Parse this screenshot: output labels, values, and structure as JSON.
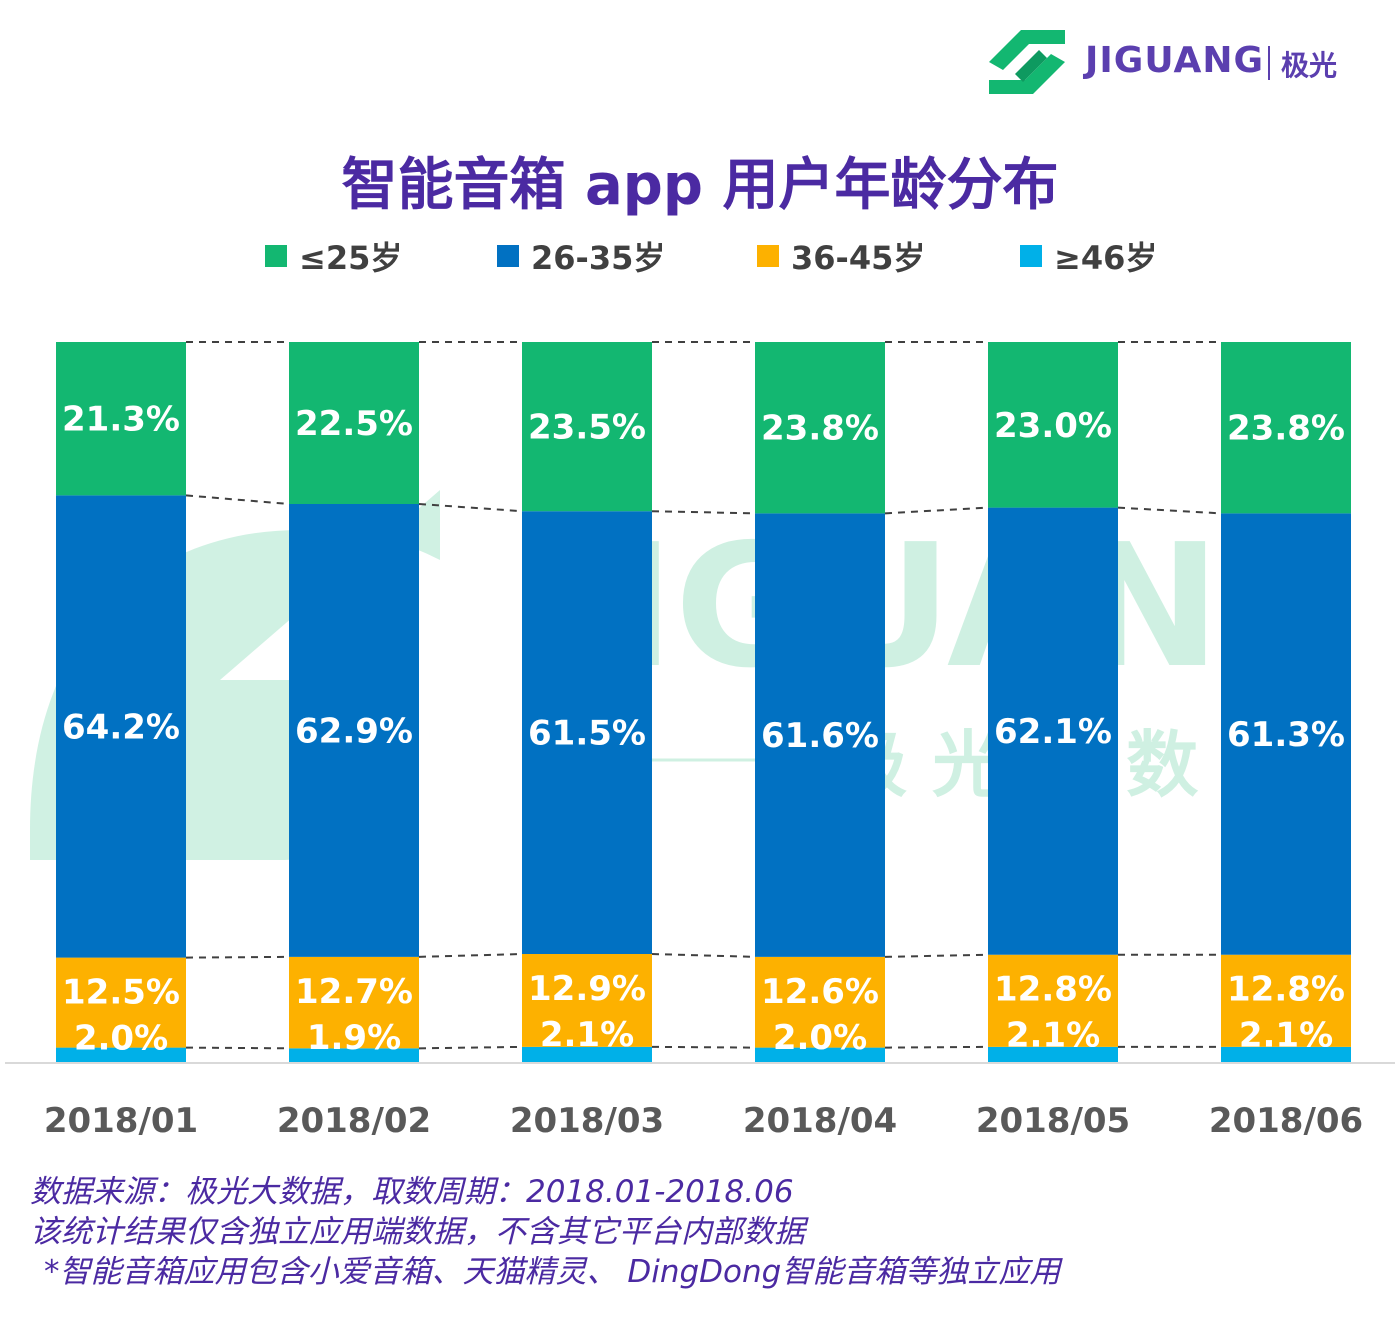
{
  "header": {
    "logo_text": "JIGUANG",
    "logo_cn": "极光"
  },
  "watermark": {
    "text": "JIGUANG",
    "cn": "极 光 大 数 据"
  },
  "title": "智能音箱 app 用户年龄分布",
  "legend": [
    {
      "label": "≤25岁",
      "color": "#13b771"
    },
    {
      "label": "26-35岁",
      "color": "#0171c2"
    },
    {
      "label": "36-45岁",
      "color": "#fdb100"
    },
    {
      "label": "≥46岁",
      "color": "#00b0e8"
    }
  ],
  "chart_data": {
    "type": "bar",
    "stacked": true,
    "normalized": true,
    "categories": [
      "2018/01",
      "2018/02",
      "2018/03",
      "2018/04",
      "2018/05",
      "2018/06"
    ],
    "series": [
      {
        "name": "≤25岁",
        "color": "#13b771",
        "values": [
          21.3,
          22.5,
          23.5,
          23.8,
          23.0,
          23.8
        ]
      },
      {
        "name": "26-35岁",
        "color": "#0171c2",
        "values": [
          64.2,
          62.9,
          61.5,
          61.6,
          62.1,
          61.3
        ]
      },
      {
        "name": "36-45岁",
        "color": "#fdb100",
        "values": [
          12.5,
          12.7,
          12.9,
          12.6,
          12.8,
          12.8
        ]
      },
      {
        "name": "≥46岁",
        "color": "#00b0e8",
        "values": [
          2.0,
          1.9,
          2.1,
          2.0,
          2.1,
          2.1
        ]
      }
    ],
    "data_labels": true,
    "unit": "%",
    "series_lines": "dashed"
  },
  "footnotes": [
    "数据来源：极光大数据，取数周期：2018.01-2018.06",
    "该统计结果仅含独立应用端数据，不含其它平台内部数据",
    "*智能音箱应用包含小爱音箱、天猫精灵、 DingDong智能音箱等独立应用"
  ]
}
